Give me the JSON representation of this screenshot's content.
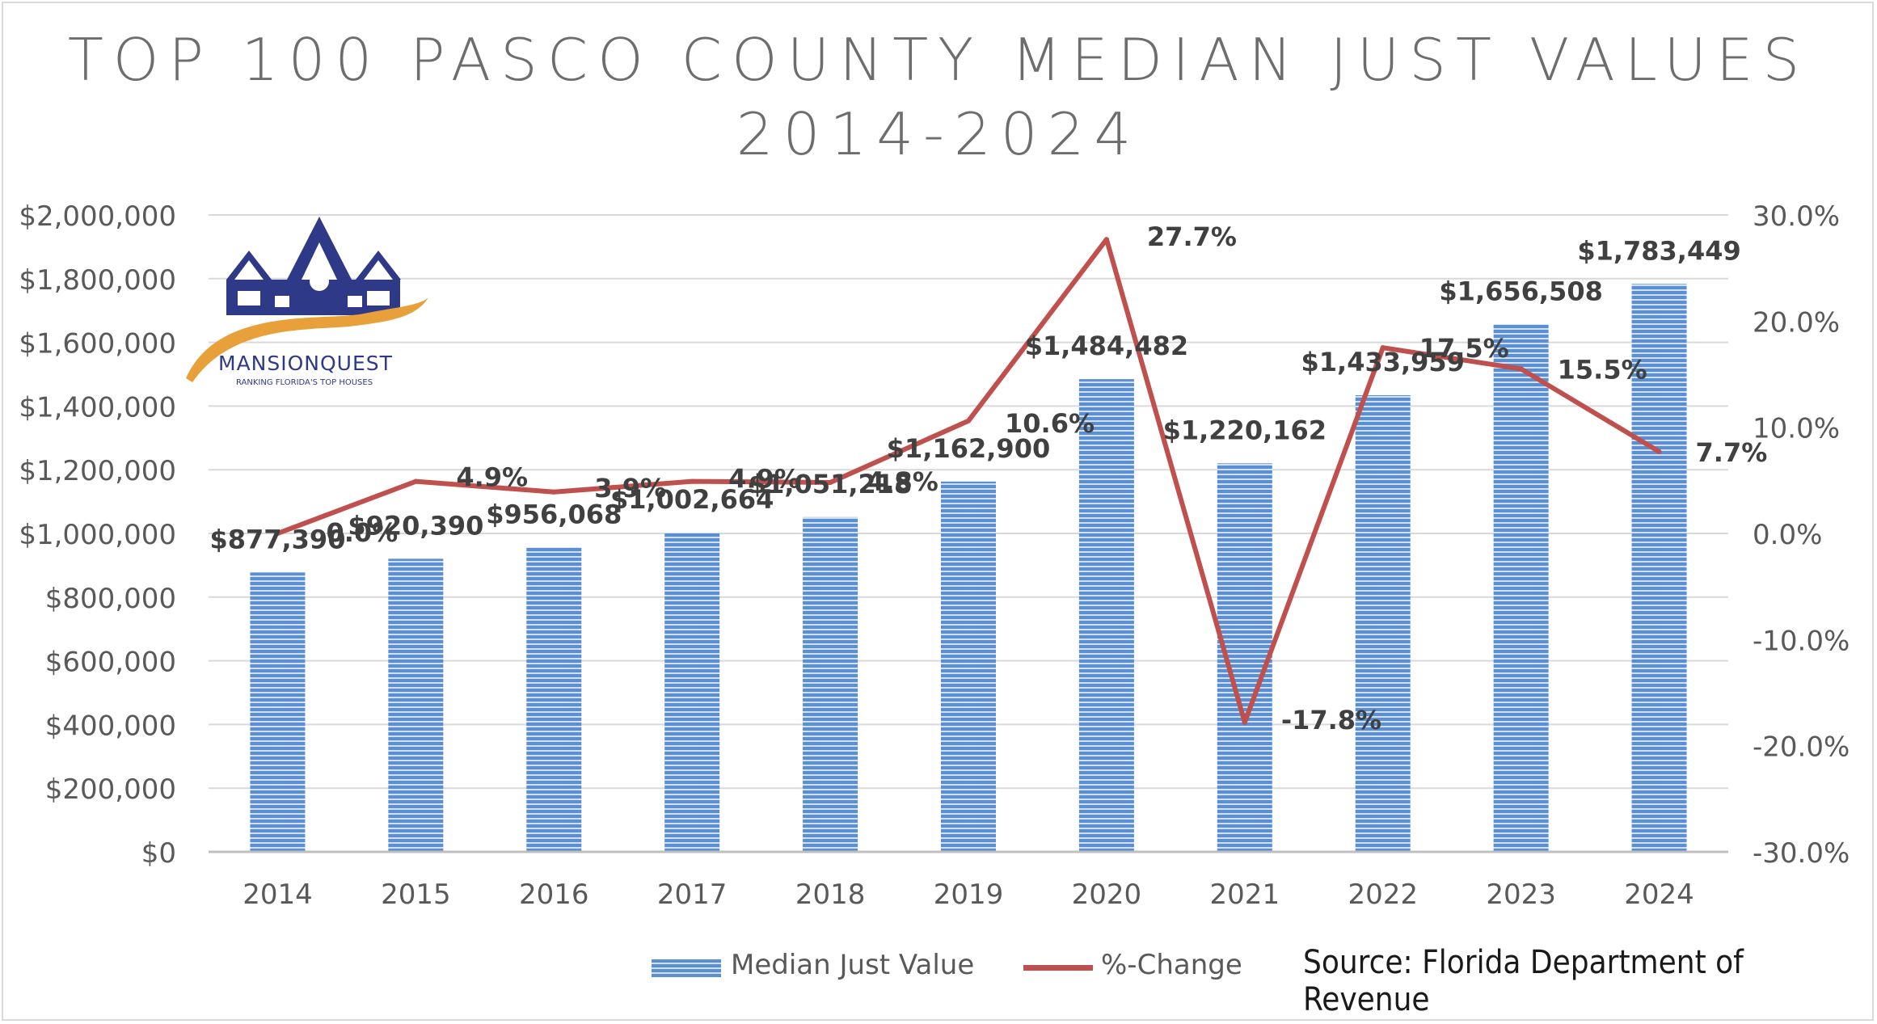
{
  "title": "TOP 100 PASCO COUNTY MEDIAN JUST VALUES 2014-2024",
  "source": "Source: Florida Department of Revenue",
  "logo": {
    "name": "MANSIONQUEST",
    "tagline": "RANKING FLORIDA'S TOP HOUSES"
  },
  "colors": {
    "bar": "#5b8fd0",
    "bar_stripe": "#ffffff",
    "line": "#c0504d",
    "grid": "#d9d9d9",
    "axis_text": "#595959",
    "label_text": "#404040",
    "logo_navy": "#2e3a87",
    "logo_gold": "#e8a13a"
  },
  "chart_data": {
    "type": "bar",
    "categories": [
      "2014",
      "2015",
      "2016",
      "2017",
      "2018",
      "2019",
      "2020",
      "2021",
      "2022",
      "2023",
      "2024"
    ],
    "series": [
      {
        "name": "Median Just Value",
        "type": "bar",
        "axis": "left",
        "values": [
          877390,
          920390,
          956068,
          1002664,
          1051218,
          1162900,
          1484482,
          1220162,
          1433959,
          1656508,
          1783449
        ],
        "labels": [
          "$877,390",
          "$920,390",
          "$956,068",
          "$1,002,664",
          "$1,051,218",
          "$1,162,900",
          "$1,484,482",
          "$1,220,162",
          "$1,433,959",
          "$1,656,508",
          "$1,783,449"
        ]
      },
      {
        "name": "%-Change",
        "type": "line",
        "axis": "right",
        "values": [
          0.0,
          4.9,
          3.9,
          4.9,
          4.8,
          10.6,
          27.7,
          -17.8,
          17.5,
          15.5,
          7.7
        ],
        "labels": [
          "0.0%",
          "4.9%",
          "3.9%",
          "4.9%",
          "4.8%",
          "10.6%",
          "27.7%",
          "-17.8%",
          "17.5%",
          "15.5%",
          "7.7%"
        ]
      }
    ],
    "y_left": {
      "min": 0,
      "max": 2000000,
      "ticks": [
        "$0",
        "$200,000",
        "$400,000",
        "$600,000",
        "$800,000",
        "$1,000,000",
        "$1,200,000",
        "$1,400,000",
        "$1,600,000",
        "$1,800,000",
        "$2,000,000"
      ]
    },
    "y_right": {
      "min": -30,
      "max": 30,
      "ticks": [
        "-30.0%",
        "-20.0%",
        "-10.0%",
        "0.0%",
        "10.0%",
        "20.0%",
        "30.0%"
      ]
    },
    "grid": true,
    "legend_position": "bottom"
  }
}
